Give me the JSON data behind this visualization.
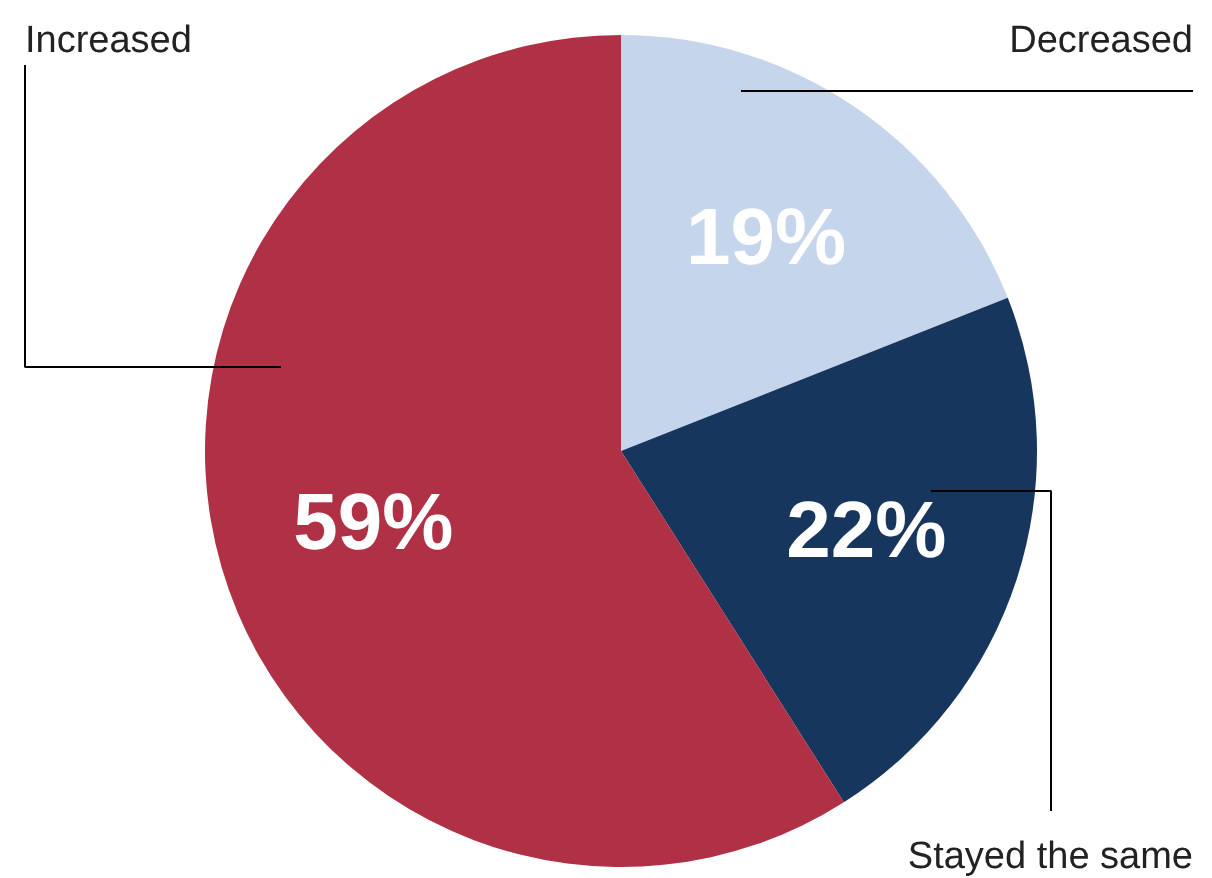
{
  "chart_data": {
    "type": "pie",
    "categories": [
      "Decreased",
      "Stayed the same",
      "Increased"
    ],
    "values": [
      19,
      22,
      59
    ],
    "colors": [
      "#c5d5ec",
      "#17365d",
      "#b03045"
    ],
    "value_labels": [
      "19%",
      "22%",
      "59%"
    ]
  }
}
